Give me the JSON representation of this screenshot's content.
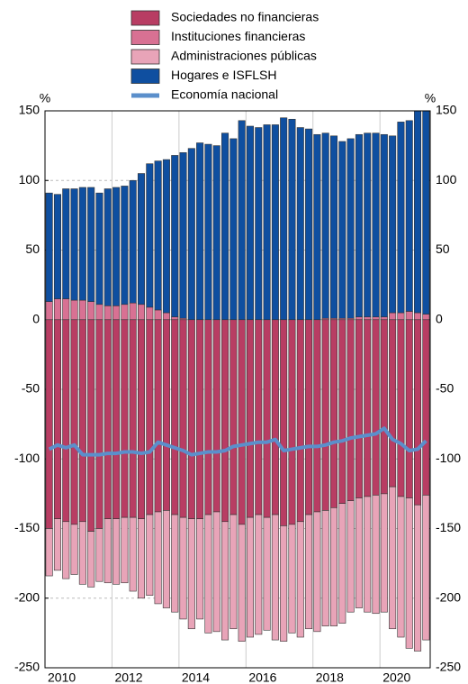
{
  "chart_data": {
    "type": "bar",
    "stacked": true,
    "y_unit": "%",
    "categories": [
      null,
      "2010",
      null,
      null,
      null,
      null,
      null,
      null,
      null,
      "2012",
      null,
      null,
      null,
      null,
      null,
      null,
      null,
      "2014",
      null,
      null,
      null,
      null,
      null,
      null,
      null,
      "2016",
      null,
      null,
      null,
      null,
      null,
      null,
      null,
      "2018",
      null,
      null,
      null,
      null,
      null,
      null,
      null,
      "2020",
      null,
      null,
      null,
      null
    ],
    "ylim": [
      -250,
      150
    ],
    "yticks": [
      150,
      100,
      50,
      0,
      -50,
      -100,
      -150,
      -200,
      -250
    ],
    "grid": true,
    "series": [
      {
        "name": "Sociedades no financieras",
        "color": "#b83d63",
        "values": [
          -150,
          -143,
          -145,
          -147,
          -145,
          -152,
          -150,
          -143,
          -143,
          -142,
          -142,
          -143,
          -140,
          -138,
          -137,
          -140,
          -142,
          -143,
          -143,
          -140,
          -138,
          -145,
          -140,
          -147,
          -142,
          -140,
          -142,
          -140,
          -148,
          -147,
          -145,
          -140,
          -138,
          -137,
          -135,
          -132,
          -130,
          -128,
          -127,
          -126,
          -125,
          -120,
          -127,
          -128,
          -133,
          -126
        ]
      },
      {
        "name": "Instituciones financieras",
        "color": "#d87193",
        "values": [
          13,
          15,
          15,
          14,
          14,
          13,
          11,
          10,
          10,
          11,
          12,
          11,
          9,
          7,
          5,
          2,
          1,
          0,
          0,
          0,
          0,
          0,
          0,
          0,
          0,
          0,
          0,
          0,
          0,
          0,
          0,
          0,
          0,
          1,
          1,
          1,
          1,
          2,
          2,
          2,
          2,
          5,
          5,
          6,
          5,
          4
        ]
      },
      {
        "name": "Administraciones públicas",
        "color": "#e8a4b8",
        "values": [
          -34,
          -37,
          -41,
          -36,
          -45,
          -40,
          -38,
          -46,
          -47,
          -47,
          -53,
          -57,
          -58,
          -66,
          -70,
          -70,
          -73,
          -79,
          -72,
          -85,
          -86,
          -85,
          -82,
          -84,
          -86,
          -86,
          -81,
          -90,
          -83,
          -78,
          -83,
          -82,
          -86,
          -83,
          -85,
          -86,
          -80,
          -79,
          -83,
          -85,
          -85,
          -102,
          -101,
          -108,
          -105,
          -104
        ]
      },
      {
        "name": "Hogares e ISFLSH",
        "color": "#0f4fa0",
        "values": [
          78,
          75,
          79,
          80,
          81,
          82,
          80,
          84,
          85,
          85,
          88,
          94,
          103,
          107,
          110,
          116,
          119,
          123,
          127,
          126,
          125,
          134,
          130,
          143,
          139,
          138,
          140,
          140,
          145,
          144,
          138,
          137,
          133,
          133,
          131,
          127,
          129,
          131,
          132,
          132,
          131,
          127,
          137,
          137,
          145,
          146
        ]
      },
      {
        "name": "Economía nacional",
        "type": "line",
        "color": "#5b8fcb",
        "values": [
          -93,
          -90,
          -92,
          -90,
          -97,
          -97,
          -97,
          -96,
          -96,
          -95,
          -95,
          -96,
          -95,
          -88,
          -90,
          -92,
          -94,
          -97,
          -96,
          -95,
          -95,
          -94,
          -91,
          -90,
          -89,
          -88,
          -88,
          -86,
          -94,
          -93,
          -92,
          -91,
          -91,
          -90,
          -88,
          -87,
          -85,
          -84,
          -83,
          -82,
          -78,
          -86,
          -89,
          -94,
          -93,
          -87
        ]
      }
    ]
  }
}
